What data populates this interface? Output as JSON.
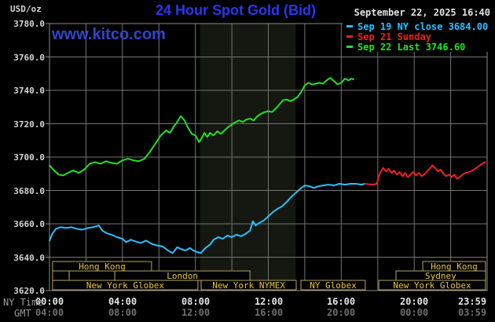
{
  "header": {
    "unit_label": "USD/oz",
    "title": "24 Hour Spot Gold (Bid)",
    "datetime": "September 22, 2025 16:40",
    "watermark": "www.kitco.com",
    "legend": [
      {
        "text": "Sep 19 NY close 3684.00",
        "color": "#2bc0ff"
      },
      {
        "text": "Sep 21 Sunday",
        "color": "#f02020"
      },
      {
        "text": "Sep 22 Last 3746.60",
        "color": "#22e122"
      }
    ]
  },
  "colors": {
    "title": "#2b35ee",
    "watermark": "#3245cc",
    "grid": "#757575",
    "frame": "#8a8a8a",
    "axis_text": "#d6d6d6",
    "session_border": "#b5a55c",
    "session_text": "#e8c63f",
    "band": "#141810"
  },
  "axis": {
    "ny_label": "NY Time",
    "gmt_label": "GMT"
  },
  "chart_data": {
    "type": "line",
    "title": "24 Hour Spot Gold (Bid)",
    "ylabel": "USD/oz",
    "ylim": [
      3620,
      3780
    ],
    "xlim_hours": [
      0,
      24
    ],
    "grid_hours_step": 2,
    "y_ticks": [
      3780,
      3760,
      3740,
      3720,
      3700,
      3680,
      3660,
      3640,
      3620
    ],
    "x_ticks": [
      {
        "hour": 0,
        "ny": "00:00",
        "gmt": "04:00"
      },
      {
        "hour": 4,
        "ny": "04:00",
        "gmt": "08:00"
      },
      {
        "hour": 8,
        "ny": "08:00",
        "gmt": "12:00"
      },
      {
        "hour": 12,
        "ny": "12:00",
        "gmt": "16:00"
      },
      {
        "hour": 16,
        "ny": "16:00",
        "gmt": "20:00"
      },
      {
        "hour": 20,
        "ny": "20:00",
        "gmt": "00:00"
      },
      {
        "hour": 24,
        "ny": "23:59",
        "gmt": "03:59"
      }
    ],
    "band": {
      "start_hour": 8.25,
      "end_hour": 13.5,
      "color": "#141810"
    },
    "series": [
      {
        "name": "Sep 19 NY close",
        "close": 3684.0,
        "color": "#2bc0ff",
        "points": [
          [
            0,
            3650
          ],
          [
            0.15,
            3654
          ],
          [
            0.35,
            3657
          ],
          [
            0.6,
            3658
          ],
          [
            0.9,
            3657.5
          ],
          [
            1.2,
            3658
          ],
          [
            1.5,
            3657
          ],
          [
            1.8,
            3656.5
          ],
          [
            2.1,
            3657.5
          ],
          [
            2.4,
            3658
          ],
          [
            2.7,
            3659
          ],
          [
            2.9,
            3656
          ],
          [
            3.1,
            3654.5
          ],
          [
            3.4,
            3653.5
          ],
          [
            3.7,
            3652
          ],
          [
            4,
            3651
          ],
          [
            4.2,
            3649
          ],
          [
            4.45,
            3650.5
          ],
          [
            4.7,
            3649.5
          ],
          [
            5,
            3648.5
          ],
          [
            5.3,
            3650
          ],
          [
            5.6,
            3648
          ],
          [
            5.9,
            3647
          ],
          [
            6.2,
            3646.5
          ],
          [
            6.5,
            3644
          ],
          [
            6.75,
            3642.5
          ],
          [
            7,
            3646
          ],
          [
            7.2,
            3645
          ],
          [
            7.45,
            3644
          ],
          [
            7.7,
            3645.5
          ],
          [
            7.9,
            3644
          ],
          [
            8.1,
            3643
          ],
          [
            8.3,
            3642.5
          ],
          [
            8.55,
            3645.5
          ],
          [
            8.8,
            3647.5
          ],
          [
            9,
            3650.5
          ],
          [
            9.25,
            3652
          ],
          [
            9.5,
            3651
          ],
          [
            9.75,
            3653
          ],
          [
            10,
            3652
          ],
          [
            10.25,
            3653.5
          ],
          [
            10.5,
            3652.5
          ],
          [
            10.75,
            3654
          ],
          [
            11,
            3656
          ],
          [
            11.15,
            3661.5
          ],
          [
            11.3,
            3659
          ],
          [
            11.5,
            3660.5
          ],
          [
            11.75,
            3662
          ],
          [
            12,
            3664.5
          ],
          [
            12.25,
            3667
          ],
          [
            12.5,
            3669
          ],
          [
            12.75,
            3670.5
          ],
          [
            13,
            3673
          ],
          [
            13.25,
            3676
          ],
          [
            13.5,
            3678.5
          ],
          [
            13.75,
            3681
          ],
          [
            14,
            3683
          ],
          [
            14.25,
            3682.5
          ],
          [
            14.5,
            3681.5
          ],
          [
            14.75,
            3682.5
          ],
          [
            15,
            3683
          ],
          [
            15.3,
            3683.5
          ],
          [
            15.6,
            3683
          ],
          [
            15.9,
            3684
          ],
          [
            16.2,
            3683.5
          ],
          [
            16.5,
            3684
          ],
          [
            16.8,
            3684
          ],
          [
            17.1,
            3683.5
          ],
          [
            17.3,
            3684
          ]
        ]
      },
      {
        "name": "Sep 21 Sunday",
        "color": "#f02020",
        "points": [
          [
            17.3,
            3684
          ],
          [
            17.75,
            3683.5
          ],
          [
            17.95,
            3684
          ],
          [
            18.05,
            3688
          ],
          [
            18.15,
            3691
          ],
          [
            18.3,
            3693.5
          ],
          [
            18.45,
            3691.5
          ],
          [
            18.6,
            3693
          ],
          [
            18.75,
            3690.5
          ],
          [
            18.9,
            3692
          ],
          [
            19.05,
            3689.5
          ],
          [
            19.2,
            3691
          ],
          [
            19.35,
            3688.5
          ],
          [
            19.5,
            3690.5
          ],
          [
            19.65,
            3688
          ],
          [
            19.8,
            3689.5
          ],
          [
            19.95,
            3691
          ],
          [
            20.1,
            3689
          ],
          [
            20.25,
            3690.5
          ],
          [
            20.4,
            3688.5
          ],
          [
            20.55,
            3689.5
          ],
          [
            20.7,
            3691.5
          ],
          [
            20.85,
            3693
          ],
          [
            21,
            3695
          ],
          [
            21.15,
            3693.5
          ],
          [
            21.3,
            3691.5
          ],
          [
            21.45,
            3692.5
          ],
          [
            21.6,
            3690
          ],
          [
            21.75,
            3688.5
          ],
          [
            21.9,
            3689.5
          ],
          [
            22.05,
            3688
          ],
          [
            22.2,
            3689.5
          ],
          [
            22.35,
            3687
          ],
          [
            22.5,
            3688
          ],
          [
            22.65,
            3689.5
          ],
          [
            22.8,
            3690.5
          ],
          [
            23,
            3691
          ],
          [
            23.2,
            3692
          ],
          [
            23.4,
            3693.5
          ],
          [
            23.6,
            3695
          ],
          [
            23.8,
            3696.5
          ],
          [
            23.9,
            3697
          ]
        ]
      },
      {
        "name": "Sep 22 Last",
        "last": 3746.6,
        "color": "#22e122",
        "points": [
          [
            0,
            3695
          ],
          [
            0.25,
            3692
          ],
          [
            0.5,
            3689.5
          ],
          [
            0.75,
            3689
          ],
          [
            1,
            3690.5
          ],
          [
            1.3,
            3692
          ],
          [
            1.6,
            3690.5
          ],
          [
            1.9,
            3692.5
          ],
          [
            2.2,
            3696
          ],
          [
            2.5,
            3697
          ],
          [
            2.8,
            3696
          ],
          [
            3.1,
            3697.5
          ],
          [
            3.4,
            3696.5
          ],
          [
            3.7,
            3696
          ],
          [
            4,
            3698
          ],
          [
            4.3,
            3699
          ],
          [
            4.6,
            3698
          ],
          [
            4.9,
            3697.5
          ],
          [
            5.2,
            3699
          ],
          [
            5.5,
            3703
          ],
          [
            5.8,
            3708
          ],
          [
            6.1,
            3713
          ],
          [
            6.4,
            3716
          ],
          [
            6.6,
            3714.5
          ],
          [
            6.8,
            3718
          ],
          [
            7,
            3721
          ],
          [
            7.2,
            3724.5
          ],
          [
            7.4,
            3722
          ],
          [
            7.6,
            3717.5
          ],
          [
            7.8,
            3714
          ],
          [
            8,
            3713
          ],
          [
            8.2,
            3709
          ],
          [
            8.35,
            3711.5
          ],
          [
            8.5,
            3714.5
          ],
          [
            8.65,
            3712
          ],
          [
            8.8,
            3714.5
          ],
          [
            9,
            3713
          ],
          [
            9.2,
            3715.5
          ],
          [
            9.4,
            3714
          ],
          [
            9.6,
            3716
          ],
          [
            9.8,
            3718
          ],
          [
            10,
            3719.5
          ],
          [
            10.2,
            3721
          ],
          [
            10.4,
            3722
          ],
          [
            10.6,
            3721
          ],
          [
            10.8,
            3722.5
          ],
          [
            11,
            3723
          ],
          [
            11.2,
            3722
          ],
          [
            11.4,
            3724.5
          ],
          [
            11.6,
            3726
          ],
          [
            11.8,
            3727
          ],
          [
            12,
            3727.5
          ],
          [
            12.2,
            3727
          ],
          [
            12.4,
            3729
          ],
          [
            12.6,
            3731.5
          ],
          [
            12.8,
            3734
          ],
          [
            13,
            3734.5
          ],
          [
            13.2,
            3733.5
          ],
          [
            13.4,
            3734.5
          ],
          [
            13.6,
            3736
          ],
          [
            13.8,
            3739
          ],
          [
            14,
            3743
          ],
          [
            14.2,
            3744.5
          ],
          [
            14.4,
            3743.5
          ],
          [
            14.6,
            3744
          ],
          [
            14.8,
            3744.5
          ],
          [
            15,
            3744
          ],
          [
            15.2,
            3746
          ],
          [
            15.4,
            3747.5
          ],
          [
            15.6,
            3745.5
          ],
          [
            15.8,
            3743.5
          ],
          [
            16,
            3744.5
          ],
          [
            16.2,
            3747
          ],
          [
            16.4,
            3746
          ],
          [
            16.55,
            3747
          ],
          [
            16.67,
            3746.6
          ]
        ]
      }
    ],
    "sessions": [
      {
        "row": 0,
        "start_hour": 0.17,
        "end_hour": 5.6,
        "label": "Hong Kong"
      },
      {
        "row": 0,
        "start_hour": 20.47,
        "end_hour": 23.91,
        "label": "Hong Kong"
      },
      {
        "row": 1,
        "start_hour": 0.17,
        "end_hour": 1.08,
        "label": ""
      },
      {
        "row": 1,
        "start_hour": 1.08,
        "end_hour": 3.58,
        "label": ""
      },
      {
        "row": 1,
        "start_hour": 3.58,
        "end_hour": 10.99,
        "label": "London"
      },
      {
        "row": 1,
        "start_hour": 19.0,
        "end_hour": 23.91,
        "label": "Sydney"
      },
      {
        "row": 2,
        "start_hour": 0.17,
        "end_hour": 8.14,
        "label": "New York Globex"
      },
      {
        "row": 2,
        "start_hour": 8.32,
        "end_hour": 13.53,
        "label": "New York NYMEX"
      },
      {
        "row": 2,
        "start_hour": 13.79,
        "end_hour": 17.32,
        "label": "NY Globex"
      },
      {
        "row": 2,
        "start_hour": 18.06,
        "end_hour": 23.91,
        "label": "New York Globex"
      }
    ]
  }
}
